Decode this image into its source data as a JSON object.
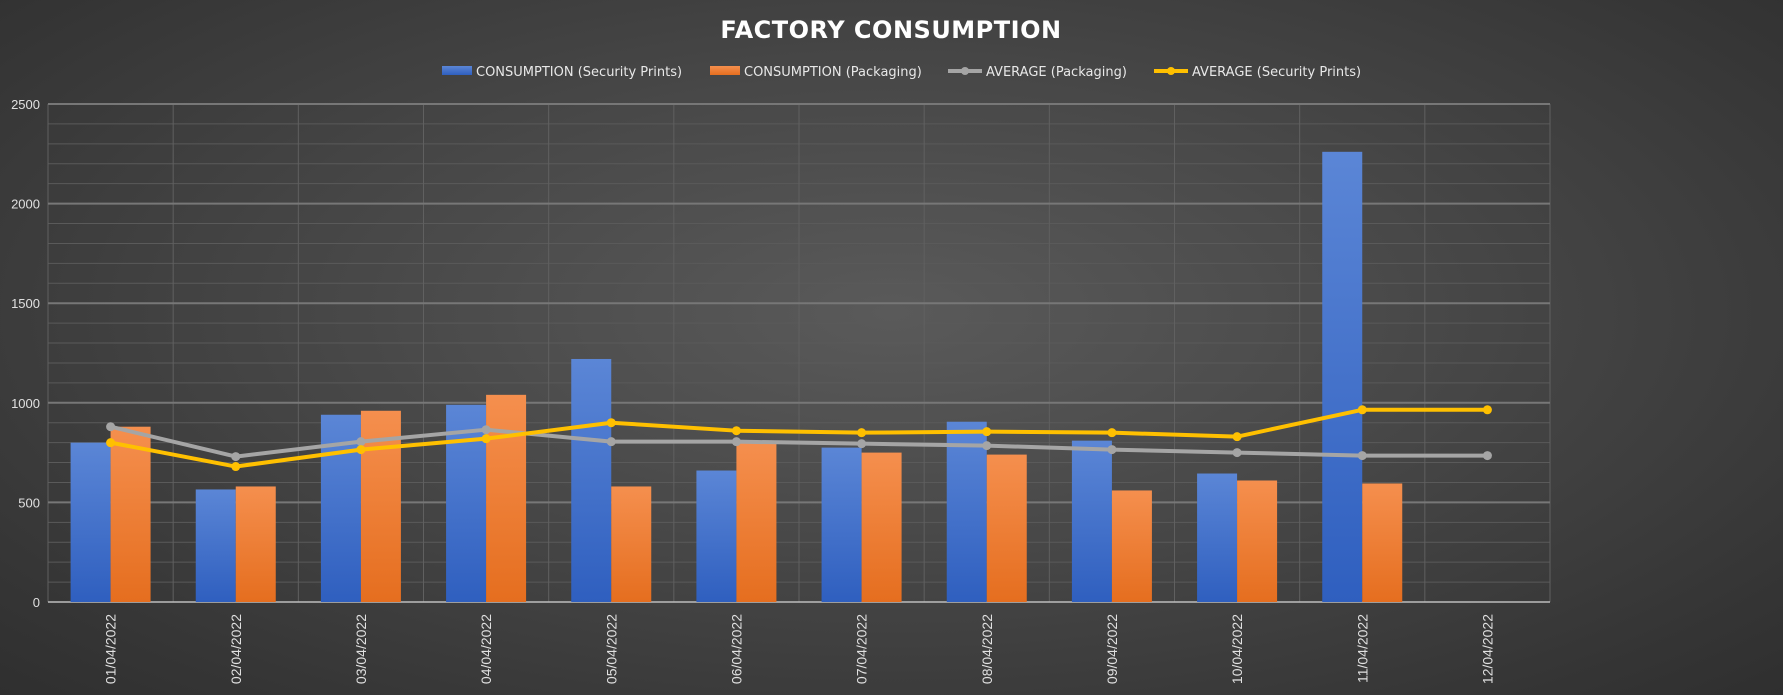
{
  "chart_data": {
    "type": "bar",
    "title": "FACTORY CONSUMPTION",
    "xlabel": "",
    "ylabel": "",
    "categories": [
      "01/04/2022",
      "02/04/2022",
      "03/04/2022",
      "04/04/2022",
      "05/04/2022",
      "06/04/2022",
      "07/04/2022",
      "08/04/2022",
      "09/04/2022",
      "10/04/2022",
      "11/04/2022",
      "12/04/2022"
    ],
    "ylim": [
      0,
      2500
    ],
    "yticks": [
      0,
      500,
      1000,
      1500,
      2000,
      2500
    ],
    "grid": true,
    "legend_position": "top",
    "series": [
      {
        "name": "CONSUMPTION (Security Prints)",
        "kind": "bar",
        "color": "#4472c4",
        "values": [
          800,
          565,
          940,
          990,
          1220,
          660,
          775,
          905,
          810,
          645,
          2260,
          null
        ]
      },
      {
        "name": "CONSUMPTION (Packaging)",
        "kind": "bar",
        "color": "#ed7d31",
        "values": [
          880,
          580,
          960,
          1040,
          580,
          800,
          750,
          740,
          560,
          610,
          595,
          null
        ]
      },
      {
        "name": "AVERAGE (Packaging)",
        "kind": "line",
        "color": "#a5a5a5",
        "values": [
          880,
          730,
          805,
          865,
          805,
          805,
          795,
          785,
          765,
          750,
          735,
          735
        ]
      },
      {
        "name": "AVERAGE (Security Prints)",
        "kind": "line",
        "color": "#ffc000",
        "values": [
          800,
          680,
          765,
          820,
          900,
          860,
          850,
          855,
          850,
          830,
          965,
          965
        ]
      }
    ]
  }
}
